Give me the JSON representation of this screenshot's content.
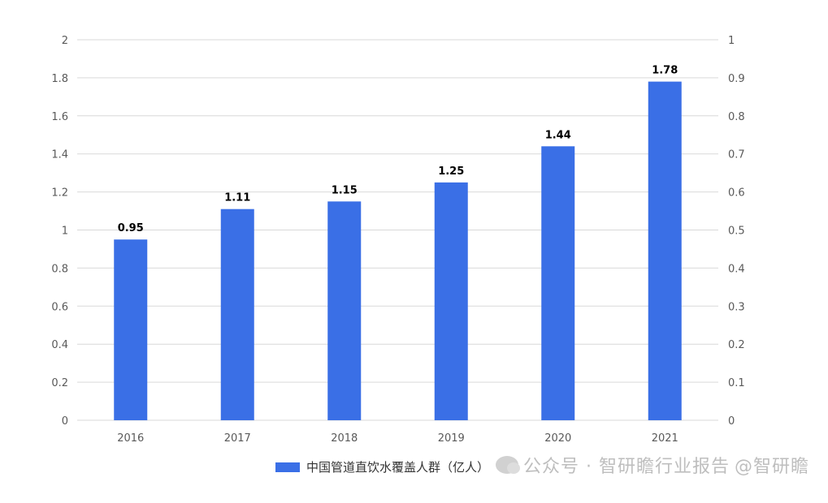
{
  "chart_data": {
    "type": "bar",
    "categories": [
      "2016",
      "2017",
      "2018",
      "2019",
      "2020",
      "2021"
    ],
    "series": [
      {
        "name": "中国管道直饮水覆盖人群（亿人）",
        "values": [
          0.95,
          1.11,
          1.15,
          1.25,
          1.44,
          1.78
        ]
      }
    ],
    "data_labels": [
      "0.95",
      "1.11",
      "1.15",
      "1.25",
      "1.44",
      "1.78"
    ],
    "y_left": {
      "lim": [
        0,
        2
      ],
      "ticks": [
        "0",
        "0.2",
        "0.4",
        "0.6",
        "0.8",
        "1",
        "1.2",
        "1.4",
        "1.6",
        "1.8",
        "2"
      ]
    },
    "y_right": {
      "lim": [
        0,
        1
      ],
      "ticks": [
        "0",
        "0.1",
        "0.2",
        "0.3",
        "0.4",
        "0.5",
        "0.6",
        "0.7",
        "0.8",
        "0.9",
        "1"
      ]
    },
    "grid": true,
    "legend_position": "bottom",
    "bar_color": "#3A6FE6"
  },
  "legend": {
    "label": "中国管道直饮水覆盖人群（亿人）"
  },
  "watermark": {
    "text": "公众号 · 智研瞻行业报告",
    "handle": "@智研瞻"
  }
}
